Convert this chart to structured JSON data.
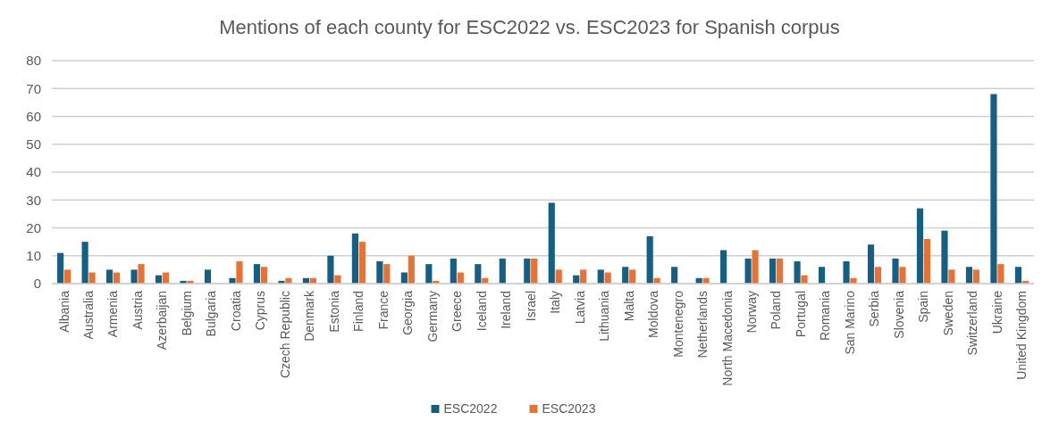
{
  "chart_data": {
    "type": "bar",
    "title": "Mentions of each county for ESC2022 vs. ESC2023 for Spanish corpus",
    "categories": [
      "Albania",
      "Australia",
      "Armenia",
      "Austria",
      "Azerbaijan",
      "Belgium",
      "Bulgaria",
      "Croatia",
      "Cyprus",
      "Czech Republic",
      "Denmark",
      "Estonia",
      "Finland",
      "France",
      "Georgia",
      "Germany",
      "Greece",
      "Iceland",
      "Ireland",
      "Israel",
      "Italy",
      "Latvia",
      "Lithuania",
      "Malta",
      "Moldova",
      "Montenegro",
      "Netherlands",
      "North Macedonia",
      "Norway",
      "Poland",
      "Portugal",
      "Romania",
      "San Marino",
      "Serbia",
      "Slovenia",
      "Spain",
      "Sweden",
      "Switzerland",
      "Ukraine",
      "United Kingdom"
    ],
    "series": [
      {
        "name": "ESC2022",
        "color": "#156082",
        "values": [
          11,
          15,
          5,
          5,
          3,
          1,
          5,
          2,
          7,
          1,
          2,
          10,
          18,
          8,
          4,
          7,
          9,
          7,
          9,
          9,
          29,
          3,
          5,
          6,
          17,
          6,
          2,
          12,
          9,
          9,
          8,
          6,
          8,
          14,
          9,
          27,
          19,
          6,
          68,
          6
        ]
      },
      {
        "name": "ESC2023",
        "color": "#e97132",
        "values": [
          5,
          4,
          4,
          7,
          4,
          1,
          0,
          8,
          6,
          2,
          2,
          3,
          15,
          7,
          10,
          1,
          4,
          2,
          0,
          9,
          5,
          5,
          4,
          5,
          2,
          0,
          2,
          0,
          12,
          9,
          3,
          0,
          2,
          6,
          6,
          16,
          5,
          5,
          7,
          1
        ]
      }
    ],
    "ylim": [
      0,
      80
    ],
    "yticks": [
      0,
      10,
      20,
      30,
      40,
      50,
      60,
      70,
      80
    ],
    "grid": "y",
    "legend": "bottom"
  }
}
